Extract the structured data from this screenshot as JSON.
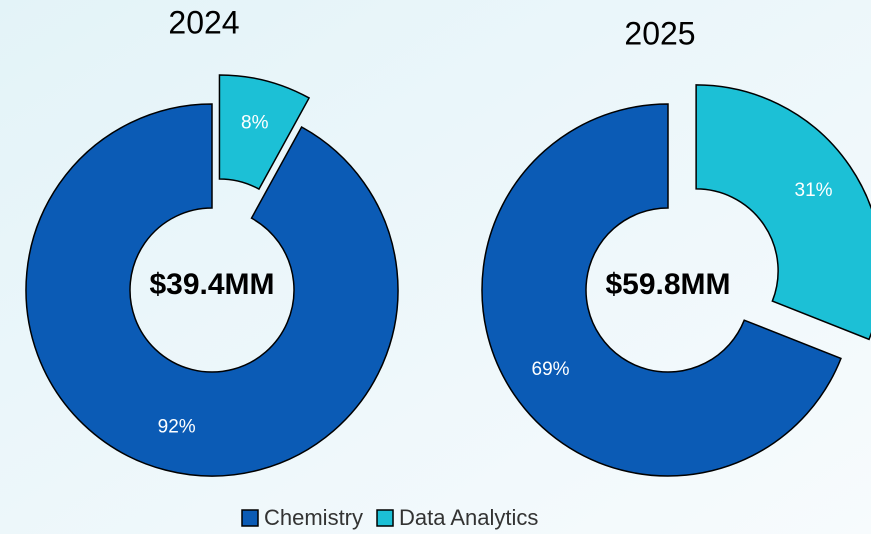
{
  "chart_data": [
    {
      "type": "donut",
      "title": "2024",
      "center_label": "$39.4MM",
      "categories": [
        "Chemistry",
        "Data Analytics"
      ],
      "values": [
        92,
        8
      ],
      "value_labels": [
        "92%",
        "8%"
      ],
      "colors": [
        "#0b5bb5",
        "#1cc0d6"
      ],
      "explode": [
        false,
        true
      ]
    },
    {
      "type": "donut",
      "title": "2025",
      "center_label": "$59.8MM",
      "categories": [
        "Chemistry",
        "Data Analytics"
      ],
      "values": [
        69,
        31
      ],
      "value_labels": [
        "69%",
        "31%"
      ],
      "colors": [
        "#0b5bb5",
        "#1cc0d6"
      ],
      "explode": [
        false,
        true
      ]
    }
  ]
}
